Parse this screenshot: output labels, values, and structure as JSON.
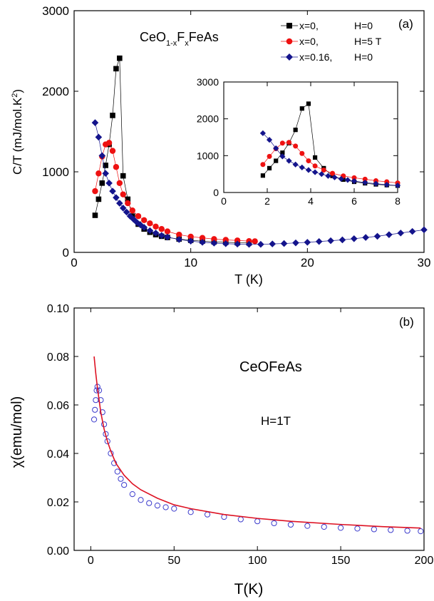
{
  "chart_data": [
    {
      "id": "a",
      "type": "scatter",
      "panel_label": "(a)",
      "compound_label": {
        "base": "CeO",
        "sub1": "1-x",
        "mid": "F",
        "sub2": "x",
        "end": "FeAs"
      },
      "xlabel": "T (K)",
      "ylabel": "C/T (mJ/mol.K",
      "ylabel_sup": "2",
      "ylabel_end": ")",
      "xlim": [
        0,
        30
      ],
      "ylim": [
        0,
        3000
      ],
      "xticks": [
        0,
        10,
        20,
        30
      ],
      "yticks": [
        0,
        1000,
        2000,
        3000
      ],
      "legend_position": "top-right",
      "series": [
        {
          "name": "x=0,",
          "field": "H=0",
          "color": "#000000",
          "marker": "square",
          "x": [
            1.8,
            2.1,
            2.4,
            2.7,
            3.0,
            3.3,
            3.6,
            3.9,
            4.2,
            4.6,
            5,
            5.5,
            6,
            6.5,
            7,
            7.5,
            8,
            9,
            10,
            11,
            12,
            13,
            14,
            15
          ],
          "y": [
            460,
            660,
            860,
            1080,
            1340,
            1700,
            2280,
            2410,
            950,
            660,
            450,
            350,
            290,
            250,
            220,
            200,
            185,
            165,
            150,
            140,
            130,
            125,
            120,
            118
          ]
        },
        {
          "name": "x=0,",
          "field": "H=5 T",
          "color": "#ee1111",
          "marker": "circle",
          "x": [
            1.8,
            2.1,
            2.4,
            2.7,
            3.0,
            3.3,
            3.6,
            3.9,
            4.2,
            4.6,
            5,
            5.5,
            6,
            6.5,
            7,
            7.5,
            8,
            9,
            10,
            11,
            12,
            13,
            14,
            15,
            15.5
          ],
          "y": [
            760,
            980,
            1190,
            1340,
            1360,
            1260,
            1060,
            860,
            720,
            610,
            520,
            450,
            400,
            360,
            320,
            290,
            260,
            220,
            195,
            180,
            165,
            155,
            148,
            140,
            138
          ]
        },
        {
          "name": "x=0.16,",
          "field": "H=0",
          "color": "#14148c",
          "marker": "diamond",
          "x": [
            1.8,
            2.1,
            2.4,
            2.7,
            3.0,
            3.3,
            3.6,
            3.9,
            4.2,
            4.5,
            4.8,
            5.1,
            5.4,
            5.7,
            6,
            6.5,
            7,
            7.5,
            8,
            9,
            10,
            11,
            12,
            13,
            14,
            15,
            16,
            17,
            18,
            19,
            20,
            21,
            22,
            23,
            24,
            25,
            26,
            27,
            28,
            29,
            30
          ],
          "y": [
            1610,
            1430,
            1200,
            980,
            860,
            760,
            680,
            610,
            550,
            500,
            450,
            410,
            370,
            340,
            310,
            270,
            240,
            210,
            190,
            160,
            140,
            125,
            115,
            108,
            103,
            100,
            100,
            105,
            110,
            118,
            125,
            135,
            145,
            155,
            170,
            185,
            200,
            220,
            240,
            260,
            280
          ]
        }
      ],
      "inset": {
        "xlim": [
          0,
          8
        ],
        "ylim": [
          0,
          3000
        ],
        "xticks": [
          0,
          2,
          4,
          6,
          8
        ],
        "yticks": [
          0,
          1000,
          2000,
          3000
        ]
      }
    },
    {
      "id": "b",
      "type": "scatter",
      "panel_label": "(b)",
      "title": "CeOFeAs",
      "annotation": "H=1T",
      "xlabel": "T(K)",
      "ylabel": "χ(emu/mol)",
      "xlim": [
        -10,
        200
      ],
      "ylim": [
        0,
        0.1
      ],
      "xticks": [
        0,
        50,
        100,
        150,
        200
      ],
      "yticks": [
        "0.00",
        "0.02",
        "0.04",
        "0.06",
        "0.08",
        "0.10"
      ],
      "series": [
        {
          "kind": "data",
          "color": "#3a3acc",
          "marker": "open-circle",
          "x": [
            2,
            2.5,
            3,
            3.5,
            4,
            5,
            6,
            7,
            8,
            9,
            10,
            12,
            14,
            16,
            18,
            20,
            25,
            30,
            35,
            40,
            45,
            50,
            60,
            70,
            80,
            90,
            100,
            110,
            120,
            130,
            140,
            150,
            160,
            170,
            180,
            190,
            198
          ],
          "y": [
            0.054,
            0.058,
            0.062,
            0.066,
            0.0675,
            0.066,
            0.062,
            0.057,
            0.052,
            0.048,
            0.045,
            0.04,
            0.036,
            0.0325,
            0.0295,
            0.027,
            0.0232,
            0.0208,
            0.0195,
            0.0185,
            0.0178,
            0.0172,
            0.0158,
            0.0148,
            0.0138,
            0.0128,
            0.012,
            0.0112,
            0.0106,
            0.0101,
            0.0097,
            0.0093,
            0.009,
            0.0087,
            0.0084,
            0.0081,
            0.0079
          ]
        },
        {
          "kind": "fit",
          "color": "#dd1122",
          "x": [
            2,
            3,
            4,
            5,
            6,
            8,
            10,
            12,
            15,
            20,
            25,
            30,
            40,
            50,
            60,
            80,
            100,
            120,
            150,
            175,
            198
          ],
          "y": [
            0.08,
            0.073,
            0.067,
            0.062,
            0.057,
            0.05,
            0.045,
            0.041,
            0.036,
            0.031,
            0.0275,
            0.025,
            0.0215,
            0.0188,
            0.0172,
            0.0148,
            0.0132,
            0.012,
            0.0107,
            0.0098,
            0.0092
          ]
        }
      ]
    }
  ]
}
